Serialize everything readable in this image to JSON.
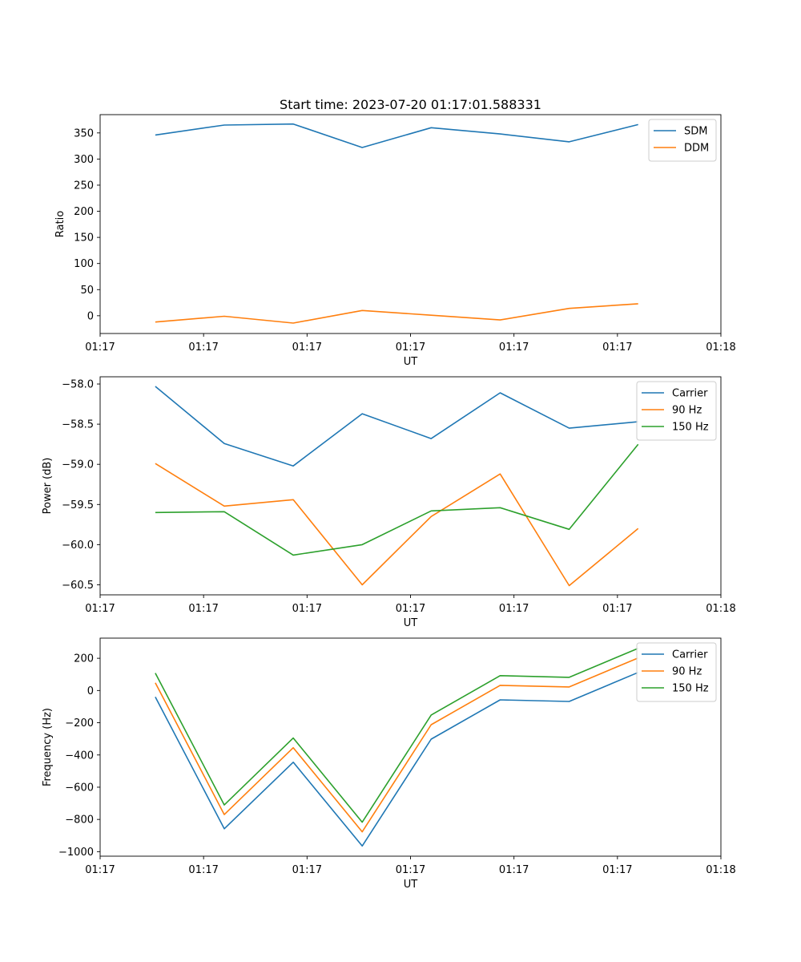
{
  "chart_data": [
    {
      "type": "line",
      "title": "Start time: 2023-07-20 01:17:01.588331",
      "xlabel": "UT",
      "ylabel": "Ratio",
      "x": [
        1,
        2,
        3,
        4,
        5,
        6,
        7,
        8
      ],
      "xlim": [
        0.2,
        9.2
      ],
      "ylim": [
        -34,
        385
      ],
      "xticks": [
        0.2,
        1.7,
        3.2,
        4.7,
        6.2,
        7.7,
        9.2
      ],
      "xtick_labels": [
        "01:17",
        "01:17",
        "01:17",
        "01:17",
        "01:17",
        "01:17",
        "01:18"
      ],
      "yticks": [
        0,
        50,
        100,
        150,
        200,
        250,
        300,
        350
      ],
      "ytick_labels": [
        "0",
        "50",
        "100",
        "150",
        "200",
        "250",
        "300",
        "350"
      ],
      "legend_position": "top-right",
      "series": [
        {
          "name": "SDM",
          "color": "#1f77b4",
          "values": [
            346,
            365,
            367,
            322,
            360,
            348,
            333,
            366
          ]
        },
        {
          "name": "DDM",
          "color": "#ff7f0e",
          "values": [
            -12,
            -1,
            -14,
            10,
            1,
            -8,
            14,
            23
          ]
        }
      ]
    },
    {
      "type": "line",
      "title": "",
      "xlabel": "UT",
      "ylabel": "Power (dB)",
      "x": [
        1,
        2,
        3,
        4,
        5,
        6,
        7,
        8
      ],
      "xlim": [
        0.2,
        9.2
      ],
      "ylim": [
        -60.625,
        -57.91
      ],
      "xticks": [
        0.2,
        1.7,
        3.2,
        4.7,
        6.2,
        7.7,
        9.2
      ],
      "xtick_labels": [
        "01:17",
        "01:17",
        "01:17",
        "01:17",
        "01:17",
        "01:17",
        "01:18"
      ],
      "yticks": [
        -58.0,
        -58.5,
        -59.0,
        -59.5,
        -60.0,
        -60.5
      ],
      "ytick_labels": [
        "−58.0",
        "−58.5",
        "−59.0",
        "−59.5",
        "−60.0",
        "−60.5"
      ],
      "legend_position": "top-right",
      "series": [
        {
          "name": "Carrier",
          "color": "#1f77b4",
          "values": [
            -58.03,
            -58.74,
            -59.02,
            -58.37,
            -58.68,
            -58.11,
            -58.55,
            -58.47
          ]
        },
        {
          "name": "90 Hz",
          "color": "#ff7f0e",
          "values": [
            -58.99,
            -59.52,
            -59.44,
            -60.5,
            -59.65,
            -59.12,
            -60.51,
            -59.8
          ]
        },
        {
          "name": "150 Hz",
          "color": "#2ca02c",
          "values": [
            -59.6,
            -59.59,
            -60.13,
            -60.0,
            -59.58,
            -59.54,
            -59.81,
            -58.75
          ]
        }
      ]
    },
    {
      "type": "line",
      "title": "",
      "xlabel": "UT",
      "ylabel": "Frequency (Hz)",
      "x": [
        1,
        2,
        3,
        4,
        5,
        6,
        7,
        8
      ],
      "xlim": [
        0.2,
        9.2
      ],
      "ylim": [
        -1028,
        325
      ],
      "xticks": [
        0.2,
        1.7,
        3.2,
        4.7,
        6.2,
        7.7,
        9.2
      ],
      "xtick_labels": [
        "01:17",
        "01:17",
        "01:17",
        "01:17",
        "01:17",
        "01:17",
        "01:18"
      ],
      "yticks": [
        200,
        0,
        -200,
        -400,
        -600,
        -800,
        -1000
      ],
      "ytick_labels": [
        "200",
        "0",
        "−200",
        "−400",
        "−600",
        "−800",
        "−1000"
      ],
      "legend_position": "top-right",
      "series": [
        {
          "name": "Carrier",
          "color": "#1f77b4",
          "values": [
            -40,
            -858,
            -445,
            -965,
            -302,
            -58,
            -68,
            112
          ]
        },
        {
          "name": "90 Hz",
          "color": "#ff7f0e",
          "values": [
            48,
            -770,
            -355,
            -877,
            -212,
            32,
            22,
            202
          ]
        },
        {
          "name": "150 Hz",
          "color": "#2ca02c",
          "values": [
            108,
            -710,
            -295,
            -817,
            -152,
            92,
            82,
            262
          ]
        }
      ]
    }
  ]
}
